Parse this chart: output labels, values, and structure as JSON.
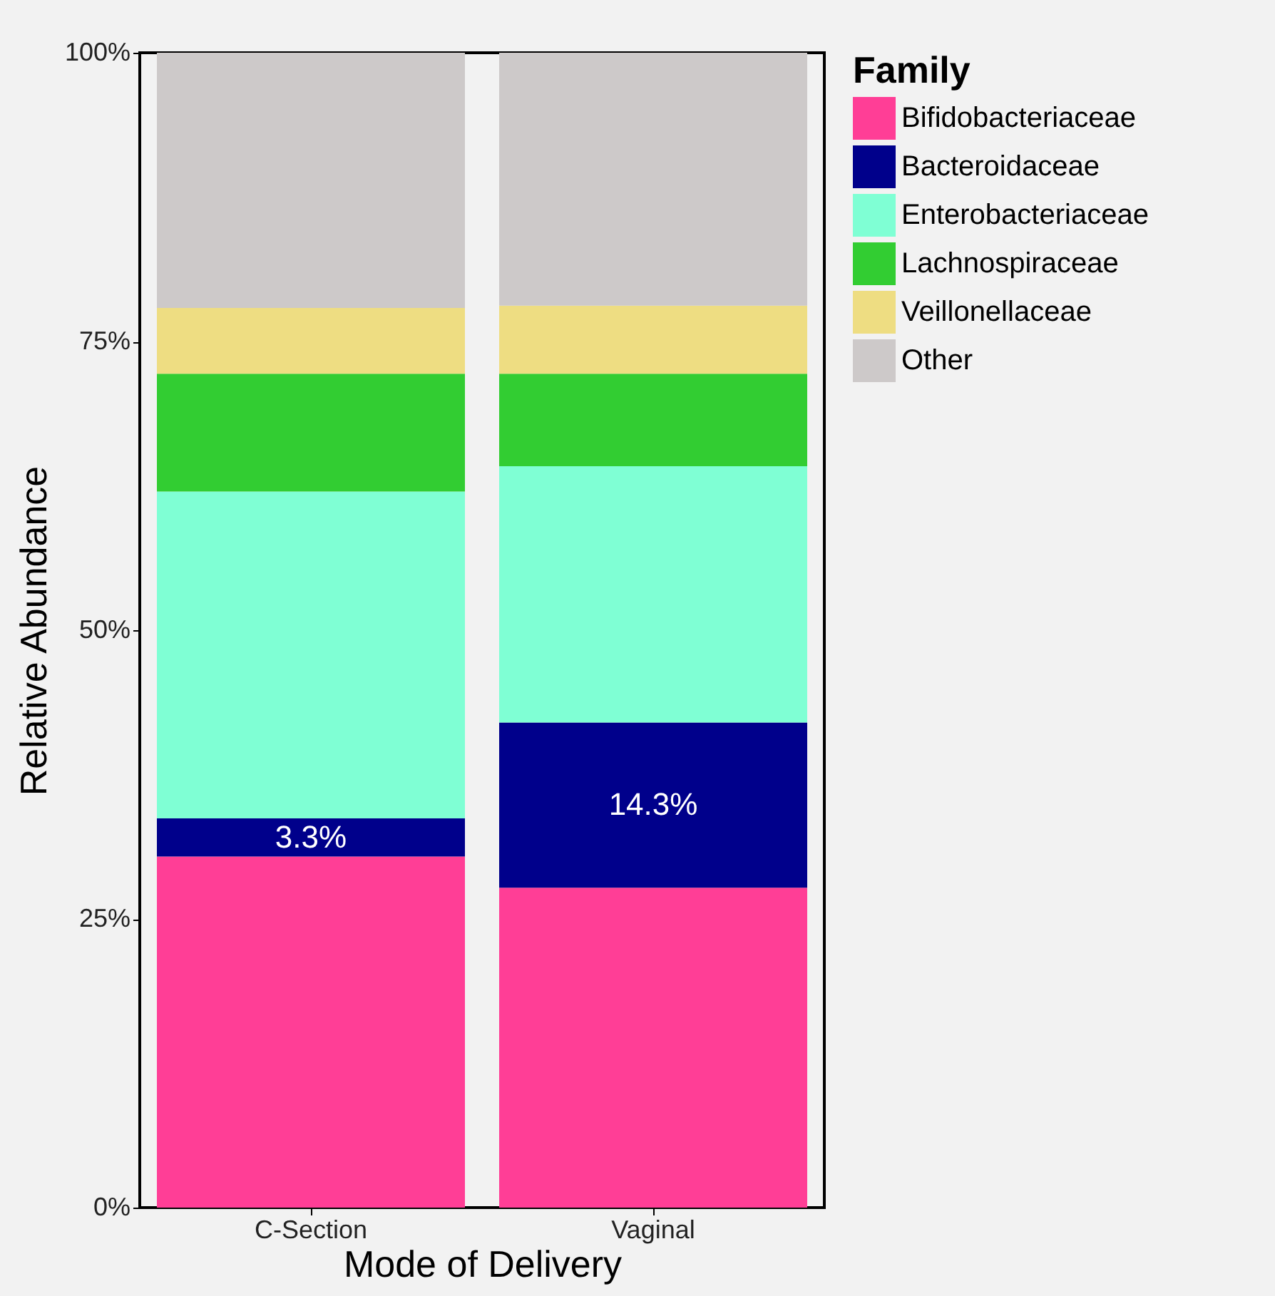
{
  "chart_data": {
    "type": "bar",
    "stacked": true,
    "xlabel": "Mode of Delivery",
    "ylabel": "Relative Abundance",
    "legend_title": "Family",
    "legend": "right",
    "grid": false,
    "categories": [
      "C-Section",
      "Vaginal"
    ],
    "ylim": [
      0,
      100
    ],
    "yticks": [
      {
        "value": 0,
        "label": "0%"
      },
      {
        "value": 25,
        "label": "25%"
      },
      {
        "value": 50,
        "label": "50%"
      },
      {
        "value": 75,
        "label": "75%"
      },
      {
        "value": 100,
        "label": "100%"
      }
    ],
    "series": [
      {
        "name": "Bifidobacteriaceae",
        "color": "#ff3e96",
        "values": [
          30.4,
          27.7
        ]
      },
      {
        "name": "Bacteroidaceae",
        "color": "#00008b",
        "values": [
          3.3,
          14.3
        ],
        "value_labels": [
          "3.3%",
          "14.3%"
        ]
      },
      {
        "name": "Enterobacteriaceae",
        "color": "#7fffd4",
        "values": [
          28.3,
          22.2
        ]
      },
      {
        "name": "Lachnospiraceae",
        "color": "#32cd32",
        "values": [
          10.2,
          8.0
        ]
      },
      {
        "name": "Veillonellaceae",
        "color": "#eedd82",
        "values": [
          5.7,
          5.9
        ]
      },
      {
        "name": "Other",
        "color": "#cdc9c9",
        "values": [
          22.1,
          21.9
        ]
      }
    ]
  }
}
